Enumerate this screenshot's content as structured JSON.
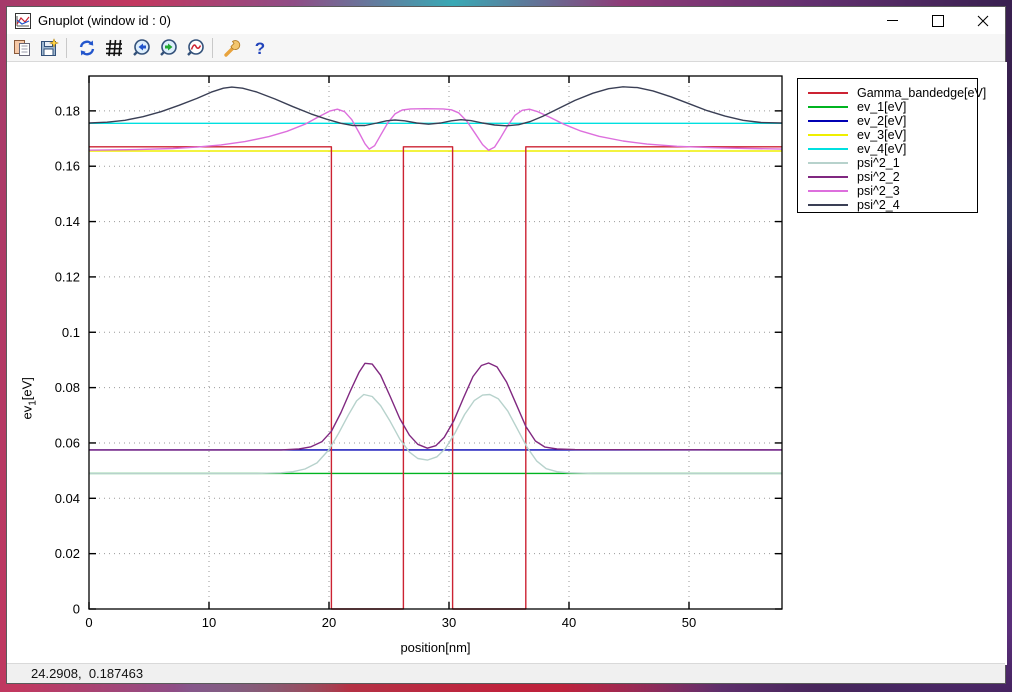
{
  "window": {
    "title": "Gnuplot (window id : 0)"
  },
  "toolbar": {
    "buttons": [
      {
        "name": "copy-to-clipboard"
      },
      {
        "name": "save-graph"
      },
      {
        "name": "replot"
      },
      {
        "name": "toggle-grid"
      },
      {
        "name": "zoom-previous"
      },
      {
        "name": "zoom-next"
      },
      {
        "name": "autoscale"
      },
      {
        "name": "configure"
      },
      {
        "name": "help"
      }
    ]
  },
  "statusbar": {
    "coordinates": "24.2908,  0.187463"
  },
  "chart_data": {
    "type": "line",
    "title": "",
    "xlabel": "position[nm]",
    "ylabel": "ev_1[eV]",
    "ylabel_parts": {
      "base": "ev",
      "sub": "1",
      "rest": "[eV]"
    },
    "xlim": [
      0,
      57.75
    ],
    "ylim": [
      0,
      0.1926
    ],
    "xticks": [
      0,
      10,
      20,
      30,
      40,
      50
    ],
    "xtick_labels": [
      "0",
      "10",
      "20",
      "30",
      "40",
      "50"
    ],
    "yticks": [
      0,
      0.02,
      0.04,
      0.06,
      0.08,
      0.1,
      0.12,
      0.14,
      0.16,
      0.18
    ],
    "ytick_labels": [
      "0",
      "0.02",
      "0.04",
      "0.06",
      "0.08",
      "0.1",
      "0.12",
      "0.14",
      "0.16",
      "0.18"
    ],
    "grid": true,
    "legend_position": "outside-right",
    "series": [
      {
        "name": "Gamma_bandedge[eV]",
        "color": "#cc2333",
        "points": [
          [
            0,
            0.167
          ],
          [
            20.2,
            0.167
          ],
          [
            20.2,
            0
          ],
          [
            26.2,
            0
          ],
          [
            26.2,
            0.167
          ],
          [
            30.3,
            0.167
          ],
          [
            30.3,
            0
          ],
          [
            36.4,
            0
          ],
          [
            36.4,
            0.167
          ],
          [
            57.75,
            0.167
          ]
        ]
      },
      {
        "name": "ev_1[eV]",
        "color": "#00b420",
        "points": [
          [
            0,
            0.049
          ],
          [
            57.75,
            0.049
          ]
        ]
      },
      {
        "name": "ev_2[eV]",
        "color": "#0000b4",
        "points": [
          [
            0,
            0.0575
          ],
          [
            57.75,
            0.0575
          ]
        ]
      },
      {
        "name": "ev_3[eV]",
        "color": "#efef00",
        "points": [
          [
            0,
            0.1655
          ],
          [
            57.75,
            0.1655
          ]
        ]
      },
      {
        "name": "ev_4[eV]",
        "color": "#00e0e0",
        "points": [
          [
            0,
            0.1755
          ],
          [
            57.75,
            0.1755
          ]
        ]
      },
      {
        "name": "psi^2_1",
        "color": "#b7d2cc",
        "points": [
          [
            0,
            0.049
          ],
          [
            14,
            0.049
          ],
          [
            16,
            0.0492
          ],
          [
            17,
            0.0496
          ],
          [
            18,
            0.0506
          ],
          [
            19,
            0.0528
          ],
          [
            20,
            0.0576
          ],
          [
            20.8,
            0.0635
          ],
          [
            21.6,
            0.07
          ],
          [
            22.3,
            0.0752
          ],
          [
            22.9,
            0.0775
          ],
          [
            23.6,
            0.0768
          ],
          [
            24.3,
            0.0735
          ],
          [
            25.1,
            0.0678
          ],
          [
            25.9,
            0.0614
          ],
          [
            26.7,
            0.0567
          ],
          [
            27.4,
            0.0544
          ],
          [
            28.2,
            0.0538
          ],
          [
            29,
            0.055
          ],
          [
            29.7,
            0.058
          ],
          [
            30.5,
            0.0636
          ],
          [
            31.3,
            0.0703
          ],
          [
            32.1,
            0.0753
          ],
          [
            32.8,
            0.0773
          ],
          [
            33.4,
            0.0775
          ],
          [
            34.1,
            0.076
          ],
          [
            34.9,
            0.0715
          ],
          [
            35.7,
            0.065
          ],
          [
            36.5,
            0.0585
          ],
          [
            37.3,
            0.0535
          ],
          [
            38.1,
            0.0507
          ],
          [
            39,
            0.0496
          ],
          [
            40,
            0.0492
          ],
          [
            42,
            0.049
          ],
          [
            57.75,
            0.049
          ]
        ]
      },
      {
        "name": "psi^2_2",
        "color": "#802880",
        "points": [
          [
            0,
            0.0575
          ],
          [
            16,
            0.0575
          ],
          [
            17.5,
            0.0578
          ],
          [
            18.5,
            0.0586
          ],
          [
            19.4,
            0.0604
          ],
          [
            20.2,
            0.0642
          ],
          [
            21,
            0.071
          ],
          [
            21.8,
            0.079
          ],
          [
            22.5,
            0.0855
          ],
          [
            23,
            0.0888
          ],
          [
            23.6,
            0.0885
          ],
          [
            24.3,
            0.0845
          ],
          [
            25.1,
            0.0768
          ],
          [
            25.9,
            0.0688
          ],
          [
            26.7,
            0.0628
          ],
          [
            27.4,
            0.0595
          ],
          [
            28.2,
            0.0581
          ],
          [
            28.9,
            0.059
          ],
          [
            29.6,
            0.062
          ],
          [
            30.4,
            0.068
          ],
          [
            31.2,
            0.0762
          ],
          [
            32,
            0.084
          ],
          [
            32.7,
            0.088
          ],
          [
            33.3,
            0.0889
          ],
          [
            34,
            0.0875
          ],
          [
            34.8,
            0.082
          ],
          [
            35.6,
            0.074
          ],
          [
            36.4,
            0.066
          ],
          [
            37.2,
            0.0607
          ],
          [
            38,
            0.0585
          ],
          [
            39,
            0.0578
          ],
          [
            40.5,
            0.0576
          ],
          [
            57.75,
            0.0575
          ]
        ]
      },
      {
        "name": "psi^2_3",
        "color": "#dd6fdd",
        "points": [
          [
            0,
            0.1658
          ],
          [
            4,
            0.166
          ],
          [
            7,
            0.1664
          ],
          [
            9,
            0.1669
          ],
          [
            11,
            0.1677
          ],
          [
            13,
            0.1689
          ],
          [
            15,
            0.1707
          ],
          [
            16.5,
            0.1726
          ],
          [
            18,
            0.1752
          ],
          [
            19.2,
            0.178
          ],
          [
            20.1,
            0.18
          ],
          [
            20.7,
            0.1806
          ],
          [
            21.3,
            0.1797
          ],
          [
            21.9,
            0.1768
          ],
          [
            22.5,
            0.1722
          ],
          [
            23,
            0.1681
          ],
          [
            23.35,
            0.1662
          ],
          [
            23.8,
            0.1674
          ],
          [
            24.3,
            0.1712
          ],
          [
            24.9,
            0.1757
          ],
          [
            25.5,
            0.1789
          ],
          [
            26.1,
            0.1803
          ],
          [
            26.8,
            0.1807
          ],
          [
            28,
            0.1808
          ],
          [
            29.5,
            0.1807
          ],
          [
            30.2,
            0.1804
          ],
          [
            30.8,
            0.1793
          ],
          [
            31.5,
            0.1762
          ],
          [
            32.2,
            0.1717
          ],
          [
            32.8,
            0.1678
          ],
          [
            33.3,
            0.1658
          ],
          [
            33.8,
            0.1669
          ],
          [
            34.3,
            0.1703
          ],
          [
            34.9,
            0.1747
          ],
          [
            35.5,
            0.1784
          ],
          [
            36.1,
            0.1802
          ],
          [
            36.7,
            0.1806
          ],
          [
            37.4,
            0.1797
          ],
          [
            38.4,
            0.1777
          ],
          [
            39.6,
            0.1751
          ],
          [
            41,
            0.1727
          ],
          [
            42.5,
            0.1708
          ],
          [
            44.5,
            0.1691
          ],
          [
            46.5,
            0.168
          ],
          [
            49,
            0.1672
          ],
          [
            52,
            0.1667
          ],
          [
            55,
            0.1664
          ],
          [
            57.75,
            0.1662
          ]
        ]
      },
      {
        "name": "psi^2_4",
        "color": "#3a3f55",
        "points": [
          [
            0,
            0.1756
          ],
          [
            1.5,
            0.1759
          ],
          [
            3,
            0.1766
          ],
          [
            4.5,
            0.1779
          ],
          [
            6,
            0.1797
          ],
          [
            7.5,
            0.182
          ],
          [
            9,
            0.1845
          ],
          [
            10.2,
            0.1868
          ],
          [
            11.2,
            0.1882
          ],
          [
            11.9,
            0.1886
          ],
          [
            12.8,
            0.1882
          ],
          [
            14,
            0.1868
          ],
          [
            15.5,
            0.1843
          ],
          [
            17,
            0.1815
          ],
          [
            18.5,
            0.1789
          ],
          [
            19.8,
            0.177
          ],
          [
            21,
            0.1755
          ],
          [
            22,
            0.1747
          ],
          [
            23,
            0.1747
          ],
          [
            24,
            0.1756
          ],
          [
            24.8,
            0.1764
          ],
          [
            25.5,
            0.1767
          ],
          [
            26.3,
            0.1764
          ],
          [
            27.3,
            0.1756
          ],
          [
            28.3,
            0.1752
          ],
          [
            29.3,
            0.1756
          ],
          [
            30.2,
            0.1764
          ],
          [
            31,
            0.1768
          ],
          [
            31.8,
            0.1765
          ],
          [
            32.8,
            0.1756
          ],
          [
            33.8,
            0.1749
          ],
          [
            34.8,
            0.1746
          ],
          [
            35.8,
            0.175
          ],
          [
            36.8,
            0.1762
          ],
          [
            37.8,
            0.178
          ],
          [
            39,
            0.1806
          ],
          [
            40.5,
            0.1838
          ],
          [
            42,
            0.1864
          ],
          [
            43.3,
            0.188
          ],
          [
            44.5,
            0.1887
          ],
          [
            45.7,
            0.1884
          ],
          [
            47,
            0.1872
          ],
          [
            48.5,
            0.1851
          ],
          [
            50,
            0.1826
          ],
          [
            51.5,
            0.1801
          ],
          [
            53,
            0.1781
          ],
          [
            54.5,
            0.1766
          ],
          [
            56,
            0.1758
          ],
          [
            57.75,
            0.1756
          ]
        ]
      }
    ]
  }
}
